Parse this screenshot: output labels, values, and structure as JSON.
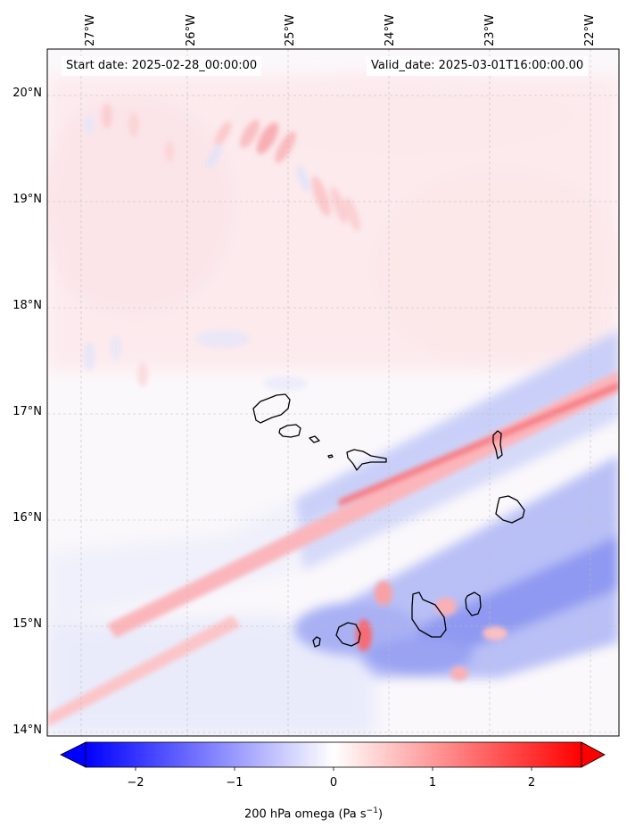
{
  "map": {
    "start_date": "Start date: 2025-02-28_00:00:00",
    "valid_date": "Valid_date: 2025-03-01T16:00:00.00",
    "longitude_labels": [
      "27°W",
      "26°W",
      "25°W",
      "24°W",
      "23°W",
      "22°W"
    ],
    "latitude_labels": [
      "20°N",
      "19°N",
      "18°N",
      "17°N",
      "16°N",
      "15°N",
      "14°N"
    ],
    "gridlines": true
  },
  "colorbar": {
    "ticks": [
      "−2",
      "−1",
      "0",
      "1",
      "2"
    ],
    "range": [
      -2.5,
      2.5
    ],
    "extend": "both",
    "colormap": "bwr",
    "label_main": "200 hPa omega (Pa s",
    "label_exp": "−1",
    "label_end": ")"
  },
  "colors": {
    "negative": "#0000ff",
    "neutral": "#ffffff",
    "positive": "#ff0000",
    "coastline": "#000000"
  }
}
